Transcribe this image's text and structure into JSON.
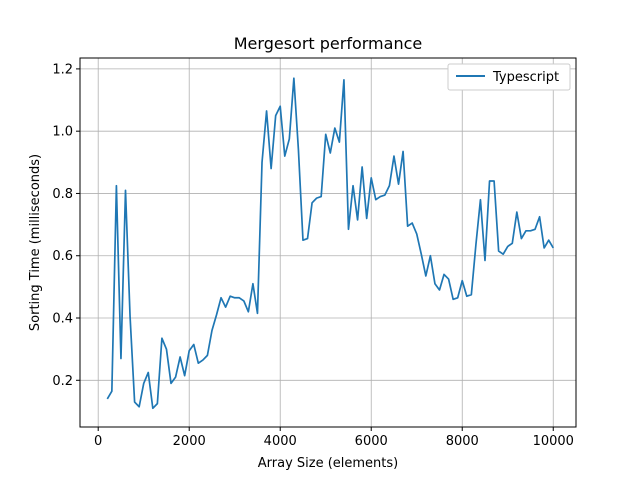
{
  "chart_data": {
    "type": "line",
    "title": "Mergesort performance",
    "xlabel": "Array Size (elements)",
    "ylabel": "Sorting Time (milliseconds)",
    "xlim": [
      -400,
      10500
    ],
    "ylim": [
      0.05,
      1.235
    ],
    "xticks": [
      0,
      2000,
      4000,
      6000,
      8000,
      10000
    ],
    "yticks": [
      0.2,
      0.4,
      0.6,
      0.8,
      1.0,
      1.2
    ],
    "xtick_labels": [
      "0",
      "2000",
      "4000",
      "6000",
      "8000",
      "10000"
    ],
    "ytick_labels": [
      "0.2",
      "0.4",
      "0.6",
      "0.8",
      "1.0",
      "1.2"
    ],
    "grid": true,
    "legend_position": "top-right",
    "series": [
      {
        "name": "Typescript",
        "color": "#1f77b4",
        "x": [
          200,
          300,
          400,
          500,
          600,
          700,
          800,
          900,
          1000,
          1100,
          1200,
          1300,
          1400,
          1500,
          1600,
          1700,
          1800,
          1900,
          2000,
          2100,
          2200,
          2300,
          2400,
          2500,
          2600,
          2700,
          2800,
          2900,
          3000,
          3100,
          3200,
          3300,
          3400,
          3500,
          3600,
          3700,
          3800,
          3900,
          4000,
          4100,
          4200,
          4300,
          4400,
          4500,
          4600,
          4700,
          4800,
          4900,
          5000,
          5100,
          5200,
          5300,
          5400,
          5500,
          5600,
          5700,
          5800,
          5900,
          6000,
          6100,
          6200,
          6300,
          6400,
          6500,
          6600,
          6700,
          6800,
          6900,
          7000,
          7100,
          7200,
          7300,
          7400,
          7500,
          7600,
          7700,
          7800,
          7900,
          8000,
          8100,
          8200,
          8300,
          8400,
          8500,
          8600,
          8700,
          8800,
          8900,
          9000,
          9100,
          9200,
          9300,
          9400,
          9500,
          9600,
          9700,
          9800,
          9900,
          10000
        ],
        "y": [
          0.14,
          0.165,
          0.825,
          0.27,
          0.81,
          0.405,
          0.13,
          0.115,
          0.19,
          0.225,
          0.11,
          0.125,
          0.335,
          0.3,
          0.19,
          0.21,
          0.275,
          0.215,
          0.295,
          0.315,
          0.255,
          0.265,
          0.28,
          0.36,
          0.41,
          0.465,
          0.435,
          0.47,
          0.465,
          0.465,
          0.455,
          0.42,
          0.51,
          0.415,
          0.9,
          1.065,
          0.88,
          1.05,
          1.08,
          0.92,
          0.975,
          1.17,
          0.94,
          0.65,
          0.655,
          0.77,
          0.785,
          0.79,
          0.99,
          0.93,
          1.01,
          0.965,
          1.165,
          0.685,
          0.825,
          0.715,
          0.885,
          0.72,
          0.85,
          0.78,
          0.79,
          0.795,
          0.825,
          0.92,
          0.83,
          0.935,
          0.695,
          0.705,
          0.67,
          0.605,
          0.535,
          0.6,
          0.51,
          0.49,
          0.54,
          0.525,
          0.46,
          0.465,
          0.52,
          0.47,
          0.475,
          0.635,
          0.78,
          0.585,
          0.84,
          0.84,
          0.615,
          0.605,
          0.63,
          0.64,
          0.74,
          0.655,
          0.68,
          0.68,
          0.685,
          0.725,
          0.625,
          0.65,
          0.625
        ]
      }
    ]
  }
}
